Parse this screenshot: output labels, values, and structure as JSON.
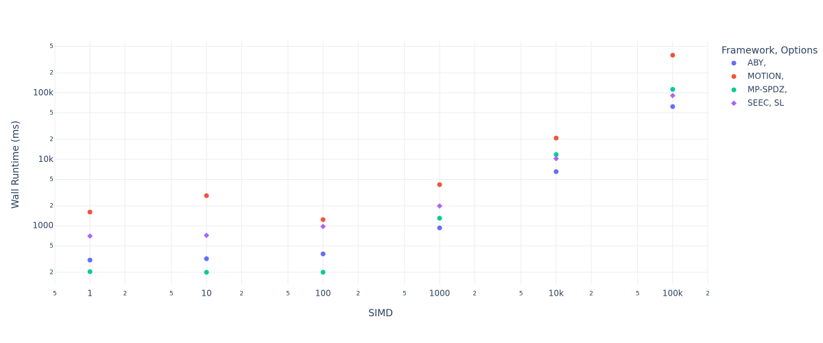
{
  "chart_data": {
    "type": "scatter",
    "x_title": "SIMD",
    "y_title": "Wall Runtime (ms)",
    "legend_title": "Framework, Options",
    "log_x": true,
    "log_y": true,
    "grid": true,
    "legend_position": "right",
    "x": [
      1,
      10,
      100,
      1000,
      10000,
      100000
    ],
    "series": [
      {
        "name": "ABY,",
        "color": "#636efa",
        "symbol": "circle",
        "values": [
          305,
          320,
          378,
          930,
          6520,
          62200
        ]
      },
      {
        "name": "MOTION,",
        "color": "#EF553B",
        "symbol": "circle",
        "values": [
          1610,
          2840,
          1240,
          4160,
          20900,
          369000
        ]
      },
      {
        "name": "MP-SPDZ,",
        "color": "#00cc96",
        "symbol": "circle",
        "values": [
          204,
          200,
          200,
          1300,
          11800,
          113000
        ]
      },
      {
        "name": "SEEC, SL",
        "color": "#ab63fa",
        "symbol": "diamond",
        "values": [
          700,
          718,
          977,
          1990,
          10240,
          91000
        ]
      }
    ],
    "xlim": [
      0.5,
      200000
    ],
    "xticks": [
      {
        "value": 0.5,
        "label": "5"
      },
      1,
      {
        "value": 2,
        "label": "2"
      },
      {
        "value": 5,
        "label": "5"
      },
      10,
      {
        "value": 20,
        "label": "2"
      },
      {
        "value": 50,
        "label": "5"
      },
      100,
      {
        "value": 200,
        "label": "2"
      },
      {
        "value": 500,
        "label": "5"
      },
      1000,
      {
        "value": 2000,
        "label": "2"
      },
      {
        "value": 5000,
        "label": "5"
      },
      {
        "value": 10000,
        "label": "10k"
      },
      {
        "value": 20000,
        "label": "2"
      },
      {
        "value": 50000,
        "label": "5"
      },
      {
        "value": 100000,
        "label": "100k"
      },
      {
        "value": 200000,
        "label": "2"
      }
    ],
    "ylim": [
      130,
      600000
    ],
    "yticks": [
      {
        "value": 200,
        "label": "2"
      },
      {
        "value": 500,
        "label": "5"
      },
      1000,
      {
        "value": 2000,
        "label": "2"
      },
      {
        "value": 5000,
        "label": "5"
      },
      {
        "value": 10000,
        "label": "10k"
      },
      {
        "value": 20000,
        "label": "2"
      },
      {
        "value": 50000,
        "label": "5"
      },
      {
        "value": 100000,
        "label": "100k"
      },
      {
        "value": 200000,
        "label": "2"
      },
      {
        "value": 500000,
        "label": "5"
      }
    ]
  }
}
